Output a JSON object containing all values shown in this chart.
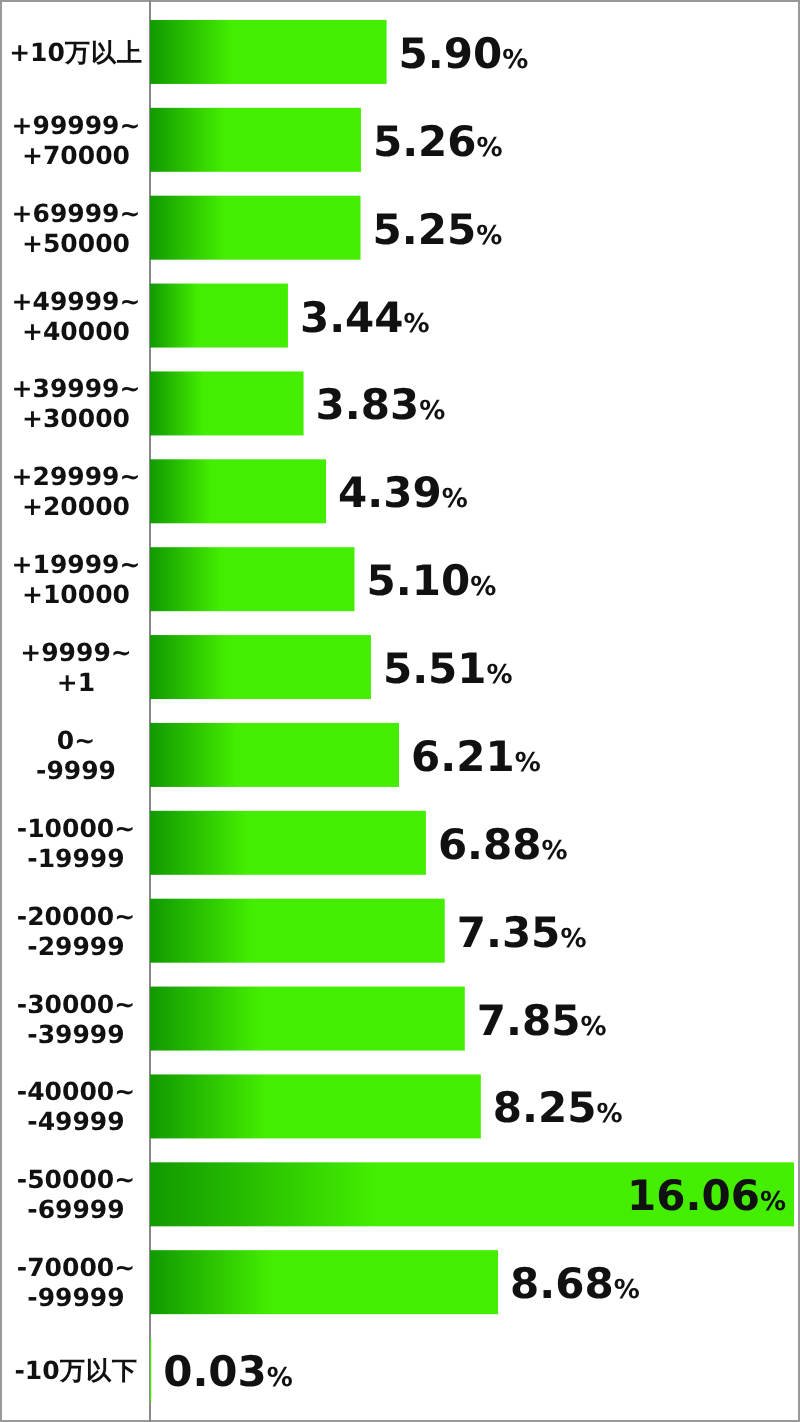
{
  "chart_data": {
    "type": "bar",
    "orientation": "horizontal",
    "color": "#44ee00",
    "categories": [
      "+10万以上",
      "+99999~\n+70000",
      "+69999~\n+50000",
      "+49999~\n+40000",
      "+39999~\n+30000",
      "+29999~\n+20000",
      "+19999~\n+10000",
      "+9999~\n+1",
      "0~\n-9999",
      "-10000~\n-19999",
      "-20000~\n-29999",
      "-30000~\n-39999",
      "-40000~\n-49999",
      "-50000~\n-69999",
      "-70000~\n-99999",
      "-10万以下"
    ],
    "values": [
      5.9,
      5.26,
      5.25,
      3.44,
      3.83,
      4.39,
      5.1,
      5.51,
      6.21,
      6.88,
      7.35,
      7.85,
      8.25,
      16.06,
      8.68,
      0.03
    ],
    "value_labels": [
      "5.90%",
      "5.26%",
      "5.25%",
      "3.44%",
      "3.83%",
      "4.39%",
      "5.10%",
      "5.51%",
      "6.21%",
      "6.88%",
      "7.35%",
      "7.85%",
      "8.25%",
      "16.06%",
      "8.68%",
      "0.03%"
    ]
  }
}
